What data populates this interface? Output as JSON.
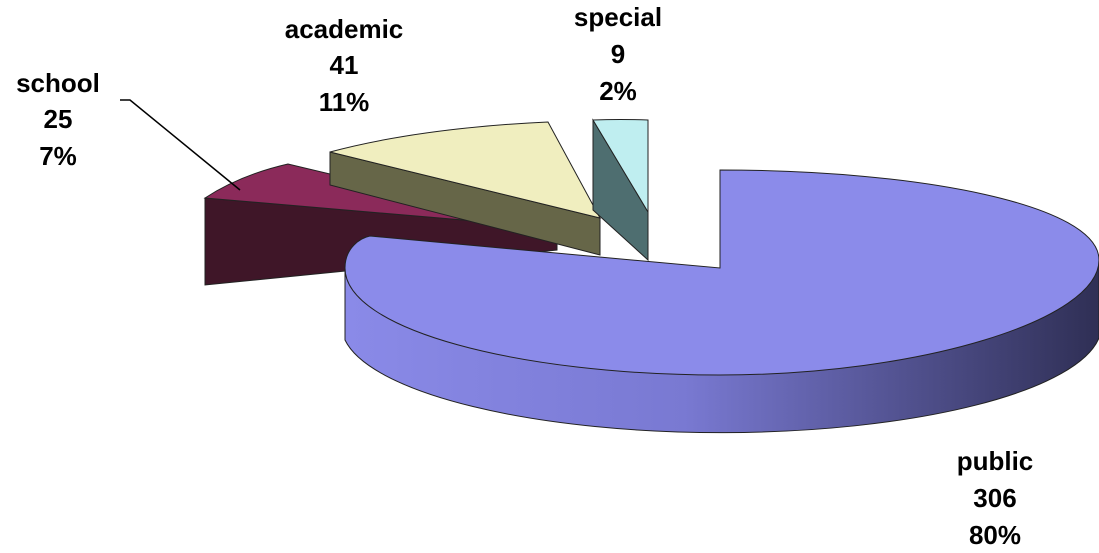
{
  "chart_data": {
    "type": "pie",
    "title": "",
    "slices": [
      {
        "label": "public",
        "value": 306,
        "percent": "80%",
        "color": "#8b8bea"
      },
      {
        "label": "special",
        "value": 9,
        "percent": "2%",
        "color": "#bfeef0"
      },
      {
        "label": "academic",
        "value": 41,
        "percent": "11%",
        "color": "#f0eebf"
      },
      {
        "label": "school",
        "value": 25,
        "percent": "7%",
        "color": "#8b2a5a"
      }
    ],
    "style": "3d-exploded"
  }
}
